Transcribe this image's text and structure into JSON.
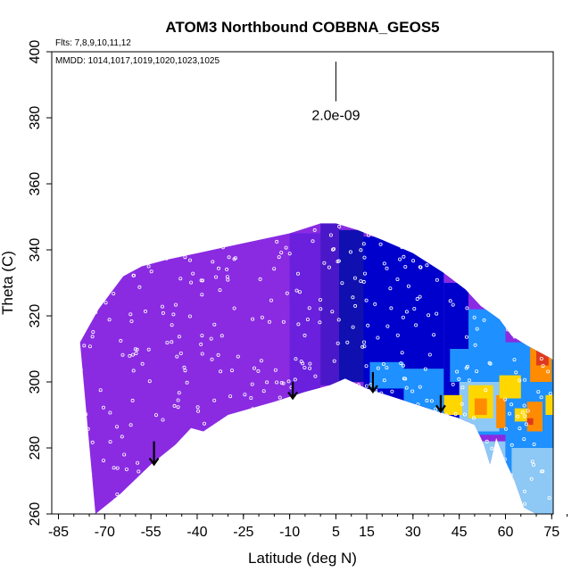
{
  "chart_data": {
    "type": "heatmap",
    "title": "ATOM3 Northbound COBBNA_GEOS5",
    "xlabel": "Latitude (deg N)",
    "ylabel": "Theta (C)",
    "flights_note": "Flts: 7,8,9,10,11,12",
    "dates_note": "MMDD: 1014,1017,1019,1020,1023,1025",
    "scale_label": "2.0e-09",
    "xlim": [
      -85,
      80
    ],
    "ylim": [
      260,
      400
    ],
    "x_ticks": [
      -85,
      -70,
      -55,
      -40,
      -25,
      -10,
      5,
      15,
      30,
      45,
      60,
      75
    ],
    "y_ticks": [
      260,
      280,
      300,
      320,
      340,
      360,
      380,
      400
    ],
    "grid": false,
    "colors": {
      "violet": "#8a2be2",
      "deep_violet": "#6a20dc",
      "indigo": "#4a18c8",
      "dark_blue": "#1010b0",
      "blue": "#0000cd",
      "sky_blue": "#1e90ff",
      "light_blue": "#8ec8f5",
      "yellow": "#ffd700",
      "orange": "#ff8c00",
      "red": "#e03a1e"
    },
    "upper_envelope": [
      [
        -78,
        312
      ],
      [
        -75,
        317
      ],
      [
        -72,
        322
      ],
      [
        -68,
        327
      ],
      [
        -64,
        332
      ],
      [
        -58,
        335
      ],
      [
        -50,
        337
      ],
      [
        -40,
        339
      ],
      [
        -30,
        341
      ],
      [
        -20,
        343
      ],
      [
        -10,
        345
      ],
      [
        0,
        348
      ],
      [
        5,
        348
      ],
      [
        12,
        346
      ],
      [
        20,
        343
      ],
      [
        30,
        339
      ],
      [
        40,
        333
      ],
      [
        47,
        328
      ],
      [
        52,
        323
      ],
      [
        58,
        319
      ],
      [
        62,
        314
      ],
      [
        67,
        311
      ],
      [
        75,
        307
      ],
      [
        77,
        305
      ]
    ],
    "lower_envelope": [
      [
        -73,
        260
      ],
      [
        -65,
        266
      ],
      [
        -55,
        275
      ],
      [
        -47,
        281
      ],
      [
        -42,
        286
      ],
      [
        -38,
        285
      ],
      [
        -30,
        290
      ],
      [
        -15,
        294
      ],
      [
        -5,
        297
      ],
      [
        3,
        299
      ],
      [
        8,
        301
      ],
      [
        15,
        298
      ],
      [
        25,
        295
      ],
      [
        38,
        291
      ],
      [
        45,
        289
      ],
      [
        50,
        287
      ],
      [
        53,
        281
      ],
      [
        55,
        275
      ],
      [
        57,
        283
      ],
      [
        60,
        276
      ],
      [
        63,
        270
      ],
      [
        66,
        262
      ],
      [
        70,
        260
      ],
      [
        77,
        260
      ]
    ],
    "regions": [
      {
        "lat": [
          -10,
          0
        ],
        "theta": [
          296,
          345
        ],
        "color": "deep_violet"
      },
      {
        "lat": [
          0,
          6
        ],
        "theta": [
          299,
          348
        ],
        "color": "indigo"
      },
      {
        "lat": [
          6,
          14
        ],
        "theta": [
          300,
          346
        ],
        "color": "dark_blue"
      },
      {
        "lat": [
          14,
          40
        ],
        "theta": [
          292,
          344
        ],
        "color": "blue"
      },
      {
        "lat": [
          16,
          27
        ],
        "theta": [
          298,
          306
        ],
        "color": "sky_blue"
      },
      {
        "lat": [
          27,
          40
        ],
        "theta": [
          290,
          304
        ],
        "color": "sky_blue"
      },
      {
        "lat": [
          40,
          48
        ],
        "theta": [
          288,
          330
        ],
        "color": "blue"
      },
      {
        "lat": [
          42,
          50
        ],
        "theta": [
          300,
          310
        ],
        "color": "sky_blue"
      },
      {
        "lat": [
          48,
          60
        ],
        "theta": [
          284,
          322
        ],
        "color": "sky_blue"
      },
      {
        "lat": [
          60,
          78
        ],
        "theta": [
          260,
          312
        ],
        "color": "sky_blue"
      },
      {
        "lat": [
          52,
          60
        ],
        "theta": [
          260,
          282
        ],
        "color": "light_blue"
      },
      {
        "lat": [
          62,
          78
        ],
        "theta": [
          260,
          280
        ],
        "color": "light_blue"
      },
      {
        "lat": [
          45,
          58
        ],
        "theta": [
          285,
          300
        ],
        "color": "light_blue"
      },
      {
        "lat": [
          40,
          46
        ],
        "theta": [
          290,
          296
        ],
        "color": "yellow"
      },
      {
        "lat": [
          48,
          56
        ],
        "theta": [
          289,
          299
        ],
        "color": "yellow"
      },
      {
        "lat": [
          50,
          54
        ],
        "theta": [
          290,
          295
        ],
        "color": "orange"
      },
      {
        "lat": [
          57,
          60
        ],
        "theta": [
          286,
          296
        ],
        "color": "orange"
      },
      {
        "lat": [
          63,
          67
        ],
        "theta": [
          288,
          292
        ],
        "color": "yellow"
      },
      {
        "lat": [
          67,
          72
        ],
        "theta": [
          285,
          294
        ],
        "color": "orange"
      },
      {
        "lat": [
          67,
          69
        ],
        "theta": [
          287,
          289
        ],
        "color": "red"
      },
      {
        "lat": [
          68,
          75
        ],
        "theta": [
          300,
          314
        ],
        "color": "orange"
      },
      {
        "lat": [
          70,
          74
        ],
        "theta": [
          305,
          311
        ],
        "color": "red"
      },
      {
        "lat": [
          58,
          65
        ],
        "theta": [
          295,
          302
        ],
        "color": "yellow"
      },
      {
        "lat": [
          73,
          76
        ],
        "theta": [
          290,
          296
        ],
        "color": "yellow"
      }
    ],
    "arrows": [
      {
        "lat": -54,
        "theta_top": 282,
        "theta_bottom": 275
      },
      {
        "lat": -9,
        "theta_top": 300,
        "theta_bottom": 295
      },
      {
        "lat": 17,
        "theta_top": 303,
        "theta_bottom": 297
      },
      {
        "lat": 39,
        "theta_top": 296,
        "theta_bottom": 291
      }
    ],
    "scale_bar": {
      "lat": 5,
      "theta_top": 397,
      "theta_bottom": 385,
      "theta_label": 381
    }
  }
}
